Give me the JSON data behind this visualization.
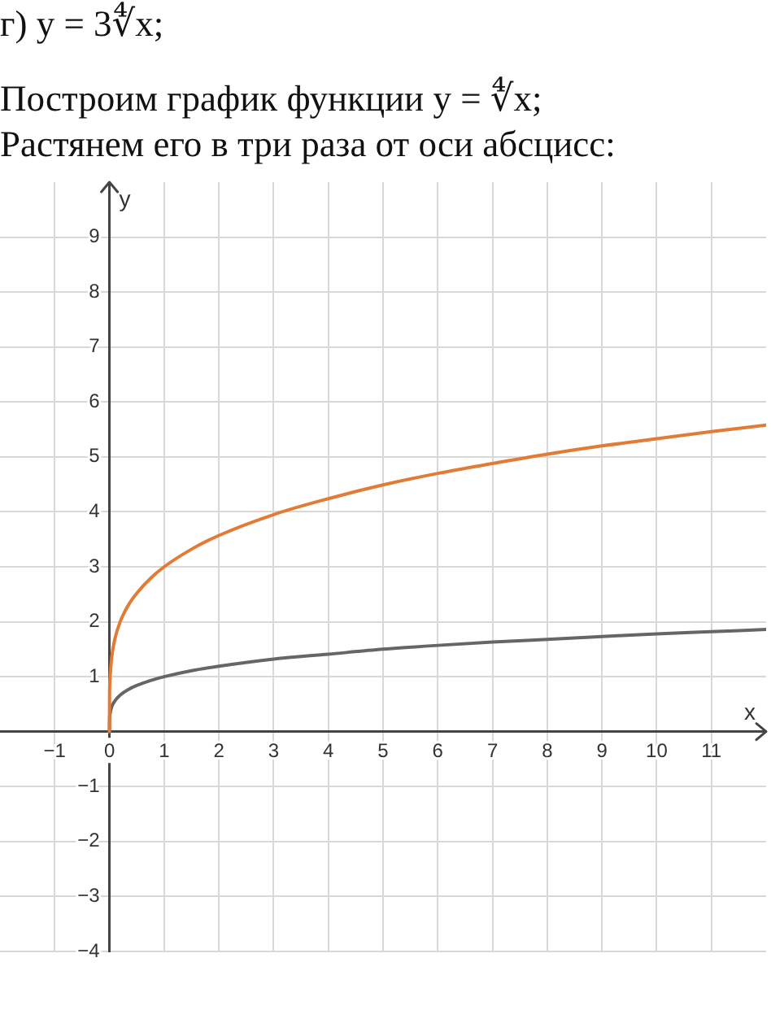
{
  "chart_data": {
    "type": "line",
    "title": "г) y = 3∜x;",
    "annotations": [
      "Построим график функции y = ∜x;",
      "Растянем его в три раза от оси абсцисс:"
    ],
    "xlabel": "x",
    "ylabel": "y",
    "series": [
      {
        "color": "#666666",
        "x": [
          0,
          0.002,
          0.01,
          0.04,
          0.1,
          0.2,
          0.35,
          0.5,
          0.75,
          1,
          1.5,
          2,
          3,
          4,
          5,
          6,
          7,
          8,
          9,
          10,
          11,
          12
        ],
        "values": [
          0,
          0.21,
          0.32,
          0.45,
          0.56,
          0.67,
          0.77,
          0.84,
          0.93,
          1,
          1.11,
          1.19,
          1.32,
          1.41,
          1.5,
          1.57,
          1.63,
          1.68,
          1.73,
          1.78,
          1.82,
          1.86
        ]
      },
      {
        "color": "#e27b36",
        "x": [
          0,
          0.002,
          0.01,
          0.04,
          0.1,
          0.2,
          0.35,
          0.5,
          0.75,
          1,
          1.5,
          2,
          3,
          4,
          5,
          6,
          7,
          8,
          9,
          10,
          11,
          12
        ],
        "values": [
          0,
          0.63,
          0.95,
          1.34,
          1.69,
          2.01,
          2.31,
          2.52,
          2.79,
          3,
          3.32,
          3.57,
          3.95,
          4.24,
          4.49,
          4.7,
          4.88,
          5.05,
          5.2,
          5.33,
          5.46,
          5.58
        ]
      }
    ],
    "xlim": [
      -2,
      12
    ],
    "ylim": [
      -4,
      10
    ],
    "xticks": [
      {
        "value": -1,
        "label": "−1"
      },
      0,
      1,
      2,
      3,
      4,
      5,
      6,
      7,
      8,
      9,
      10,
      11
    ],
    "yticks": [
      {
        "value": -4,
        "label": "−4"
      },
      {
        "value": -3,
        "label": "−3"
      },
      {
        "value": -2,
        "label": "−2"
      },
      {
        "value": -1,
        "label": "−1"
      },
      1,
      2,
      3,
      4,
      5,
      6,
      7,
      8,
      9
    ],
    "grid": true,
    "legend": false,
    "marker": "none",
    "line_style": "solid"
  }
}
